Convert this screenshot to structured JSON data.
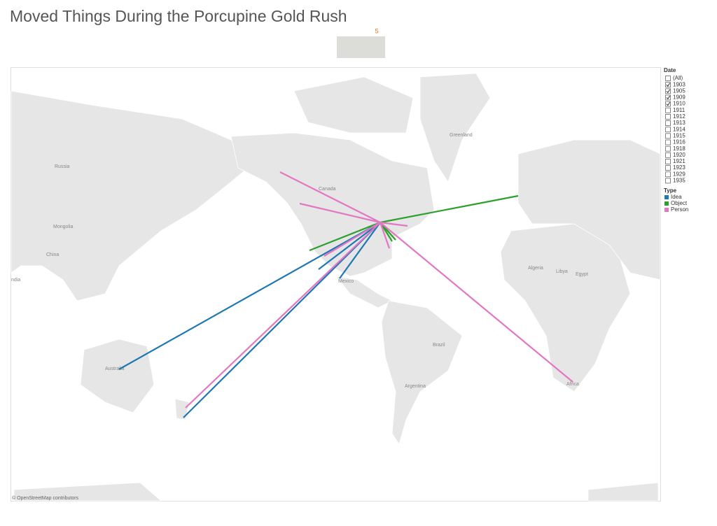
{
  "header": {
    "title": "Moved Things During the Porcupine Gold Rush",
    "badge": "5"
  },
  "map": {
    "labels": [
      "Russia",
      "Canada",
      "Mongolia",
      "China",
      "ndia",
      "Australia",
      "Brazil",
      "Argentina",
      "Greenland",
      "Algeria",
      "Libya",
      "Egypt",
      "Africa",
      "Mexico"
    ],
    "attribution": "© OpenStreetMap contributors"
  },
  "filters": {
    "date": {
      "title": "Date",
      "items": [
        {
          "label": "(All)",
          "checked": false
        },
        {
          "label": "1903",
          "checked": true
        },
        {
          "label": "1905",
          "checked": true
        },
        {
          "label": "1909",
          "checked": true
        },
        {
          "label": "1910",
          "checked": true
        },
        {
          "label": "1911",
          "checked": false
        },
        {
          "label": "1912",
          "checked": false
        },
        {
          "label": "1913",
          "checked": false
        },
        {
          "label": "1914",
          "checked": false
        },
        {
          "label": "1915",
          "checked": false
        },
        {
          "label": "1916",
          "checked": false
        },
        {
          "label": "1918",
          "checked": false
        },
        {
          "label": "1920",
          "checked": false
        },
        {
          "label": "1921",
          "checked": false
        },
        {
          "label": "1923",
          "checked": false
        },
        {
          "label": "1929",
          "checked": false
        },
        {
          "label": "1935",
          "checked": false
        }
      ]
    }
  },
  "legend": {
    "type": {
      "title": "Type",
      "items": [
        {
          "label": "Idea",
          "color": "#1f77b4"
        },
        {
          "label": "Object",
          "color": "#2ca02c"
        },
        {
          "label": "Person",
          "color": "#e377c2"
        }
      ]
    }
  }
}
